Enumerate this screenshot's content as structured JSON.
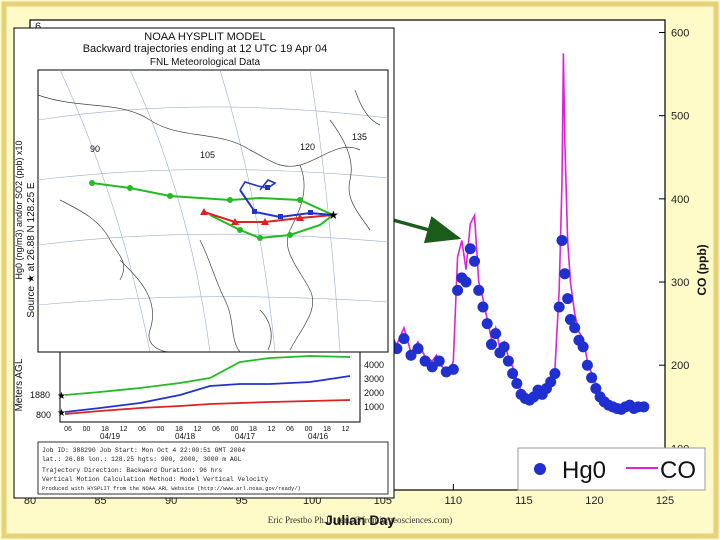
{
  "chart_data": {
    "type": "scatter",
    "xlabel": "Julian Day",
    "ylabel_right": "CO (ppb)",
    "ylabel_left_partial": "Hg0 (ng/m3) and/or SO2 (ppb) x10",
    "x_ticks": [
      "80",
      "85",
      "90",
      "95",
      "100",
      "105",
      "110",
      "115",
      "120",
      "125"
    ],
    "xlim": [
      80,
      125
    ],
    "y_right_ticks": [
      "100",
      "200",
      "300",
      "400",
      "500",
      "600"
    ],
    "ylim_right": [
      50,
      615
    ],
    "left_tick_top": "6",
    "legend": [
      {
        "name": "Hg0",
        "marker": "circle",
        "color": "#1f2fd0"
      },
      {
        "name": "CO",
        "marker": "line",
        "color": "#dd22dd"
      }
    ],
    "series": [
      {
        "name": "CO",
        "x": [
          105.0,
          105.5,
          106.0,
          106.5,
          107.0,
          107.5,
          108.0,
          108.5,
          108.8,
          109.1,
          109.4,
          109.7,
          110.0,
          110.3,
          110.6,
          110.9,
          111.2,
          111.5,
          111.8,
          112.1,
          112.4,
          112.7,
          113.0,
          113.3,
          113.6,
          113.9,
          114.2,
          114.5,
          114.8,
          115.1,
          115.4,
          115.7,
          116.0,
          116.3,
          116.6,
          116.9,
          117.2,
          117.5,
          117.7,
          117.8,
          117.9,
          118.1,
          118.3,
          118.6,
          118.9,
          119.2,
          119.5,
          119.8,
          120.1,
          120.4,
          120.7,
          121.0,
          121.3,
          121.6,
          121.9,
          122.2,
          122.5,
          122.8,
          123.1,
          123.5
        ],
        "values": [
          255,
          235,
          225,
          245,
          215,
          228,
          210,
          205,
          212,
          200,
          195,
          190,
          205,
          330,
          350,
          315,
          370,
          380,
          300,
          280,
          255,
          232,
          245,
          220,
          228,
          210,
          198,
          182,
          170,
          165,
          162,
          168,
          175,
          170,
          178,
          185,
          195,
          290,
          420,
          575,
          470,
          350,
          300,
          262,
          240,
          232,
          205,
          190,
          178,
          168,
          160,
          152,
          150,
          148,
          146,
          150,
          152,
          148,
          150,
          152
        ]
      },
      {
        "name": "Hg0",
        "x": [
          105.0,
          105.5,
          106.0,
          106.5,
          107.0,
          107.5,
          108.0,
          108.5,
          109.0,
          109.5,
          110.0,
          110.3,
          110.6,
          110.9,
          111.2,
          111.5,
          111.8,
          112.1,
          112.4,
          112.7,
          113.0,
          113.3,
          113.6,
          113.9,
          114.2,
          114.5,
          114.8,
          115.1,
          115.4,
          115.7,
          116.0,
          116.3,
          116.6,
          116.9,
          117.2,
          117.5,
          117.7,
          117.9,
          118.1,
          118.3,
          118.6,
          118.9,
          119.2,
          119.5,
          119.8,
          120.1,
          120.4,
          120.7,
          121.0,
          121.3,
          121.6,
          121.9,
          122.2,
          122.5,
          122.8,
          123.1,
          123.5
        ],
        "values": [
          240,
          228,
          220,
          232,
          212,
          220,
          205,
          198,
          205,
          192,
          195,
          290,
          305,
          300,
          340,
          325,
          290,
          270,
          250,
          225,
          238,
          215,
          222,
          205,
          190,
          178,
          165,
          160,
          158,
          162,
          170,
          165,
          172,
          180,
          190,
          270,
          350,
          310,
          280,
          255,
          245,
          230,
          222,
          200,
          185,
          172,
          162,
          156,
          152,
          150,
          148,
          147,
          150,
          152,
          148,
          150,
          150
        ]
      }
    ],
    "annotation": "arrow pointing to Hg0/CO peak near Julian Day 110"
  },
  "inset": {
    "title1": "NOAA HYSPLIT MODEL",
    "title2": "Backward trajectories ending at 12 UTC 19 Apr 04",
    "title3": "FNL Meteorological Data",
    "side_label": "Source ★ at  26.88 N  128.25 E",
    "yaxis_label": "Meters AGL",
    "profile_right_ticks": [
      "4000",
      "3000",
      "2000",
      "1000"
    ],
    "profile_left_ticks": [
      "1880",
      "800"
    ],
    "time_ticks": [
      "06",
      "00",
      "18",
      "12",
      "06",
      "00",
      "18",
      "12",
      "06",
      "00",
      "18",
      "12",
      "06",
      "00",
      "18",
      "12"
    ],
    "date_labels": [
      "04/19",
      "04/18",
      "04/17",
      "04/16"
    ],
    "lon_labels": [
      "90",
      "105",
      "120",
      "135"
    ],
    "info": [
      "Job ID: 388290      Job Start: Mon Oct  4 22:00:51 GMT 2004",
      "lat.: 26.88  lon.: 128.25  hgts: 900, 2000, 3000 m AGL",
      "Trajectory Direction: Backward      Duration: 96 hrs",
      "Vertical Motion Calculation Method: Model Vertical Velocity",
      "Produced with HYSPLIT from the NOAA ARL Website (http://www.arl.noaa.gov/ready/)"
    ]
  },
  "footer": {
    "credit": "Eric Prestbo Ph.D. (eric@frontiergeosciences.com)"
  }
}
